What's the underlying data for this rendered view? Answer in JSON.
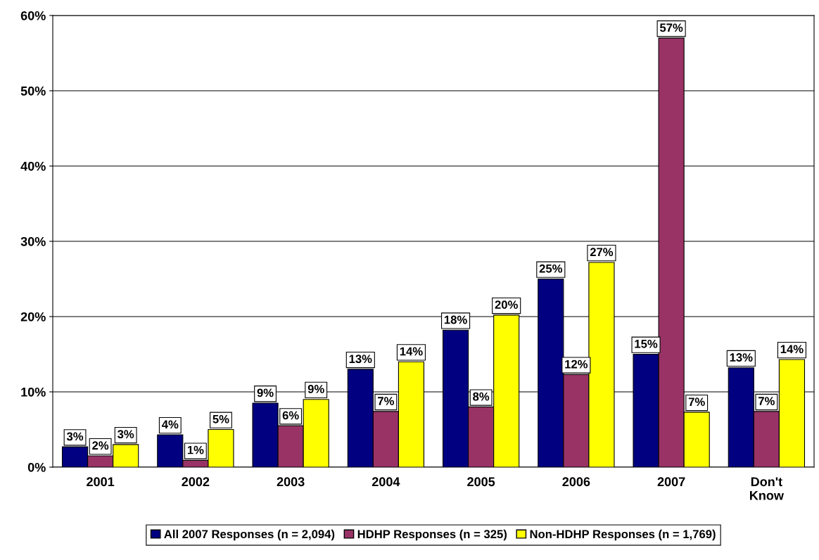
{
  "chart_data": {
    "type": "bar",
    "categories": [
      "2001",
      "2002",
      "2003",
      "2004",
      "2005",
      "2006",
      "2007",
      "Don't\nKnow"
    ],
    "series": [
      {
        "name": "All 2007 Responses (n = 2,094)",
        "color": "#000080",
        "values": [
          2.7,
          4.3,
          8.5,
          13,
          18.2,
          25,
          15,
          13.2
        ],
        "value_labels": [
          "3%",
          "4%",
          "9%",
          "13%",
          "18%",
          "25%",
          "15%",
          "13%"
        ]
      },
      {
        "name": "HDHP Responses (n = 325)",
        "color": "#993366",
        "values": [
          1.5,
          0.9,
          5.5,
          7.4,
          8,
          12.3,
          57,
          7.4
        ],
        "value_labels": [
          "2%",
          "1%",
          "6%",
          "7%",
          "8%",
          "12%",
          "57%",
          "7%"
        ]
      },
      {
        "name": "Non-HDHP Responses (n = 1,769)",
        "color": "#ffff00",
        "values": [
          3,
          5,
          9,
          14,
          20.2,
          27.2,
          7.3,
          14.3
        ],
        "value_labels": [
          "3%",
          "5%",
          "9%",
          "14%",
          "20%",
          "27%",
          "7%",
          "14%"
        ]
      }
    ],
    "ylim": [
      0,
      60
    ],
    "yticks": [
      {
        "value": 0,
        "label": "0%"
      },
      {
        "value": 10,
        "label": "10%"
      },
      {
        "value": 20,
        "label": "20%"
      },
      {
        "value": 30,
        "label": "30%"
      },
      {
        "value": 40,
        "label": "40%"
      },
      {
        "value": 50,
        "label": "50%"
      },
      {
        "value": 60,
        "label": "60%"
      }
    ],
    "grid": "y",
    "legend": "bottom"
  }
}
